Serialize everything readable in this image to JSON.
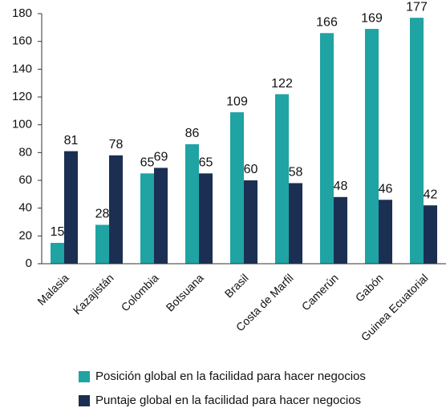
{
  "chart_data": {
    "type": "bar",
    "categories": [
      "Malasia",
      "Kazajistán",
      "Colombia",
      "Botsuana",
      "Brasil",
      "Costa de Marfil",
      "Camerún",
      "Gabón",
      "Guinea Ecuatorial"
    ],
    "series": [
      {
        "name": "Posición global en la facilidad para hacer negocios",
        "color": "#1fa3a3",
        "values": [
          15,
          28,
          65,
          86,
          109,
          122,
          166,
          169,
          177
        ]
      },
      {
        "name": "Puntaje global en la facilidad para hacer negocios",
        "color": "#1b2f52",
        "values": [
          81,
          78,
          69,
          65,
          60,
          58,
          48,
          46,
          42
        ]
      }
    ],
    "ylim": [
      0,
      180
    ],
    "yticks": [
      0,
      20,
      40,
      60,
      80,
      100,
      120,
      140,
      160,
      180
    ]
  }
}
